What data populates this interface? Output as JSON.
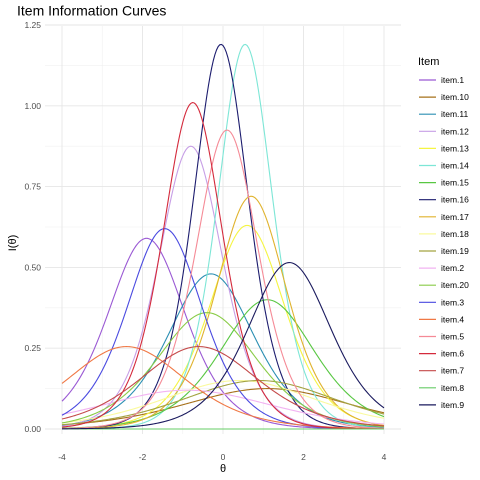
{
  "chart_data": {
    "type": "line",
    "title": "Item Information Curves",
    "xlabel": "θ",
    "ylabel": "I(θ)",
    "xlim": [
      -4,
      4
    ],
    "ylim": [
      0,
      1.25
    ],
    "x_ticks": [
      -4,
      -2,
      0,
      2,
      4
    ],
    "y_ticks": [
      "0.00",
      "0.25",
      "0.50",
      "0.75",
      "1.00",
      "1.25"
    ],
    "grid": true,
    "legend": {
      "title": "Item",
      "position": "right"
    },
    "series": [
      {
        "name": "item.1",
        "color": "#9a59d4",
        "peak_x": -1.9,
        "peak_y": 0.59,
        "a": 1.54
      },
      {
        "name": "item.10",
        "color": "#a6701a",
        "peak_x": 1.1,
        "peak_y": 0.125,
        "a": 0.71
      },
      {
        "name": "item.11",
        "color": "#2b8fb3",
        "peak_x": -0.3,
        "peak_y": 0.48,
        "a": 1.39
      },
      {
        "name": "item.12",
        "color": "#c79fe6",
        "peak_x": -0.8,
        "peak_y": 0.875,
        "a": 1.87
      },
      {
        "name": "item.13",
        "color": "#f5f542",
        "peak_x": 0.6,
        "peak_y": 0.63,
        "a": 1.59
      },
      {
        "name": "item.14",
        "color": "#7de6d6",
        "peak_x": 0.55,
        "peak_y": 1.19,
        "a": 2.18
      },
      {
        "name": "item.15",
        "color": "#58c742",
        "peak_x": 1.1,
        "peak_y": 0.4,
        "a": 1.27
      },
      {
        "name": "item.16",
        "color": "#1c1c6e",
        "peak_x": -0.05,
        "peak_y": 1.19,
        "a": 2.18
      },
      {
        "name": "item.17",
        "color": "#e0b32e",
        "peak_x": 0.7,
        "peak_y": 0.72,
        "a": 1.7
      },
      {
        "name": "item.18",
        "color": "#fafa9e",
        "peak_x": 0.4,
        "peak_y": 0.15,
        "a": 0.77
      },
      {
        "name": "item.19",
        "color": "#a3a340",
        "peak_x": 0.9,
        "peak_y": 0.15,
        "a": 0.77
      },
      {
        "name": "item.2",
        "color": "#f2b3f2",
        "peak_x": -0.9,
        "peak_y": 0.12,
        "a": 0.69
      },
      {
        "name": "item.20",
        "color": "#8acc48",
        "peak_x": -0.4,
        "peak_y": 0.36,
        "a": 1.2
      },
      {
        "name": "item.3",
        "color": "#4a4ae0",
        "peak_x": -1.45,
        "peak_y": 0.62,
        "a": 1.58
      },
      {
        "name": "item.4",
        "color": "#f07845",
        "peak_x": -2.4,
        "peak_y": 0.255,
        "a": 1.01
      },
      {
        "name": "item.5",
        "color": "#f58a96",
        "peak_x": 0.1,
        "peak_y": 0.925,
        "a": 1.92
      },
      {
        "name": "item.6",
        "color": "#d42a3c",
        "peak_x": -0.75,
        "peak_y": 1.01,
        "a": 2.01
      },
      {
        "name": "item.7",
        "color": "#c44a4a",
        "peak_x": -0.6,
        "peak_y": 0.255,
        "a": 1.01
      },
      {
        "name": "item.8",
        "color": "#66cc66",
        "peak_x": 0.5,
        "peak_y": 0.0,
        "a": 0.0
      },
      {
        "name": "item.9",
        "color": "#1a1a5e",
        "peak_x": 1.65,
        "peak_y": 0.515,
        "a": 1.44
      }
    ]
  }
}
